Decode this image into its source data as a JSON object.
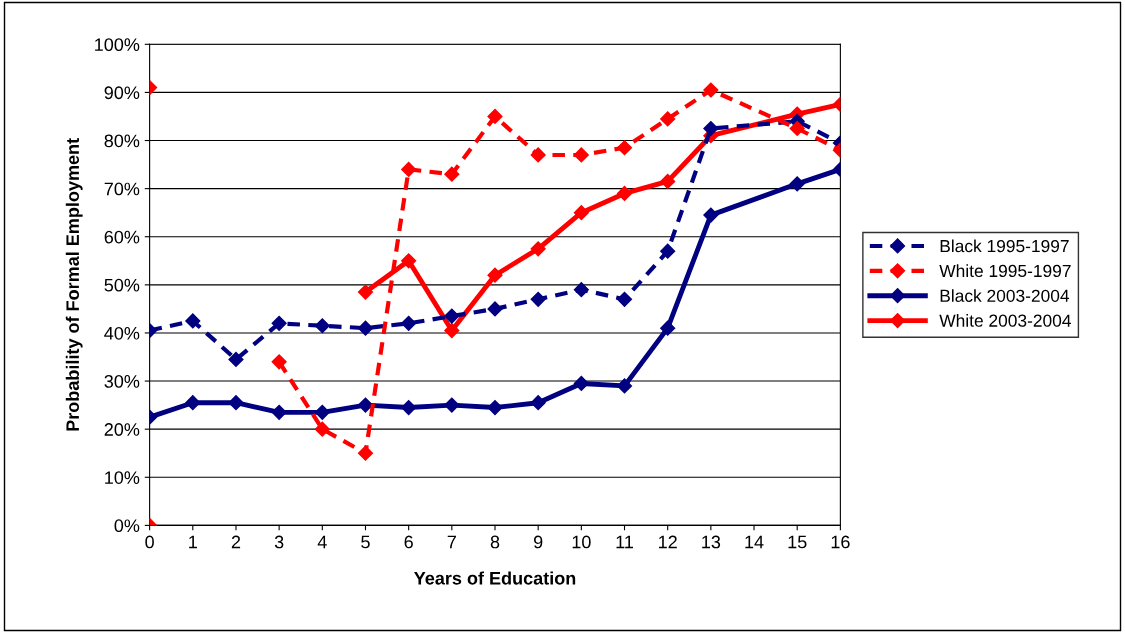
{
  "chart_data": {
    "type": "line",
    "xlabel": "Years of Education",
    "ylabel": "Probability of Formal Employment",
    "x": [
      0,
      1,
      2,
      3,
      4,
      5,
      6,
      7,
      8,
      9,
      10,
      11,
      12,
      13,
      15,
      16
    ],
    "xlim": [
      0,
      16
    ],
    "xticks": [
      0,
      1,
      2,
      3,
      4,
      5,
      6,
      7,
      8,
      9,
      10,
      11,
      12,
      13,
      14,
      15,
      16
    ],
    "ylim": [
      0,
      100
    ],
    "yticks": [
      {
        "value": 0,
        "label": "0%"
      },
      {
        "value": 10,
        "label": "10%"
      },
      {
        "value": 20,
        "label": "20%"
      },
      {
        "value": 30,
        "label": "30%"
      },
      {
        "value": 40,
        "label": "40%"
      },
      {
        "value": 50,
        "label": "50%"
      },
      {
        "value": 60,
        "label": "60%"
      },
      {
        "value": 70,
        "label": "70%"
      },
      {
        "value": 80,
        "label": "80%"
      },
      {
        "value": 90,
        "label": "90%"
      },
      {
        "value": 100,
        "label": "100%"
      }
    ],
    "grid": "y",
    "legend": "right",
    "marker": "diamond",
    "series": [
      {
        "name": "Black 1995-1997",
        "color": "#000080",
        "line_style": "dashed",
        "values": [
          40.5,
          42.5,
          34.5,
          42,
          41.5,
          41,
          42,
          43.5,
          45,
          47,
          49,
          47,
          57,
          82.5,
          84,
          79.5
        ]
      },
      {
        "name": "White 1995-1997",
        "color": "#ff0000",
        "line_style": "dashed",
        "values": [
          91,
          null,
          null,
          34,
          20,
          15,
          74,
          73,
          85,
          77,
          77,
          78.5,
          84.5,
          90.5,
          82.5,
          78
        ]
      },
      {
        "name": "Black 2003-2004",
        "color": "#000080",
        "line_style": "solid",
        "values": [
          22.5,
          25.5,
          25.5,
          23.5,
          23.5,
          25,
          24.5,
          25,
          24.5,
          25.5,
          29.5,
          29,
          41,
          64.5,
          71,
          74
        ]
      },
      {
        "name": "White 2003-2004",
        "color": "#ff0000",
        "line_style": "solid",
        "values": [
          0,
          null,
          null,
          null,
          null,
          48.5,
          55,
          40.5,
          52,
          57.5,
          65,
          69,
          71.5,
          81,
          85.5,
          87.5
        ]
      }
    ]
  }
}
